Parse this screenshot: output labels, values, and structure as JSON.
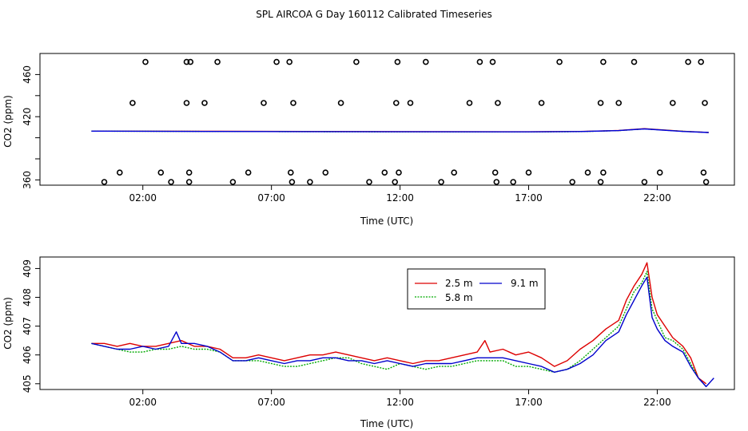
{
  "figure": {
    "title": "SPL AIRCOA G  Day 160112  Calibrated Timeseries"
  },
  "chart_data": [
    {
      "type": "scatter",
      "xlabel": "Time (UTC)",
      "ylabel": "CO2 (ppm)",
      "xlim": [
        -2.0,
        25.0
      ],
      "ylim": [
        355.0,
        480.0
      ],
      "xticks": [
        2,
        7,
        12,
        17,
        22
      ],
      "xtick_labels": [
        "02:00",
        "07:00",
        "12:00",
        "17:00",
        "22:00"
      ],
      "yticks": [
        360,
        380,
        400,
        420,
        440,
        460
      ],
      "ytick_labels": [
        "360",
        "",
        "",
        "420",
        "",
        "460"
      ],
      "grid": false,
      "legend": "none",
      "points": {
        "color": "#000000",
        "x": [
          0.5,
          1.1,
          1.6,
          2.1,
          2.7,
          3.1,
          3.7,
          3.7,
          3.8,
          3.8,
          3.85,
          4.4,
          4.9,
          5.5,
          6.1,
          6.7,
          7.2,
          7.7,
          7.75,
          7.8,
          7.85,
          8.5,
          9.1,
          9.7,
          10.3,
          10.8,
          11.4,
          11.8,
          11.85,
          11.9,
          11.95,
          12.4,
          13.0,
          13.6,
          14.1,
          14.7,
          15.1,
          15.6,
          15.7,
          15.75,
          15.8,
          16.4,
          17.0,
          17.5,
          18.2,
          18.7,
          19.3,
          19.8,
          19.8,
          19.9,
          19.9,
          20.5,
          21.1,
          21.5,
          22.1,
          22.6,
          23.2,
          23.7,
          23.8,
          23.85,
          23.9
        ]
      },
      "line_series": [
        {
          "color": "#dd0000",
          "x": [
            0.0,
            5.0,
            12.0,
            17.0,
            19.0,
            20.5,
            21.5,
            23.0,
            24.0
          ],
          "values": [
            406.3,
            406.1,
            405.8,
            405.7,
            406.0,
            406.9,
            408.6,
            406.2,
            405.0
          ]
        },
        {
          "color": "#00bb00",
          "x": [
            0.0,
            5.0,
            12.0,
            17.0,
            19.0,
            20.5,
            21.5,
            23.0,
            24.0
          ],
          "values": [
            406.3,
            406.0,
            405.6,
            405.5,
            405.8,
            406.8,
            408.4,
            406.1,
            405.0
          ]
        },
        {
          "color": "#0000dd",
          "x": [
            0.0,
            5.0,
            12.0,
            17.0,
            19.0,
            20.5,
            21.5,
            23.0,
            24.0
          ],
          "values": [
            406.3,
            406.0,
            405.7,
            405.6,
            405.9,
            406.8,
            408.4,
            406.0,
            405.0
          ]
        }
      ]
    },
    {
      "type": "line",
      "xlabel": "Time (UTC)",
      "ylabel": "CO2 (ppm)",
      "xlim": [
        -2.0,
        25.0
      ],
      "ylim": [
        404.8,
        409.4
      ],
      "xticks": [
        2,
        7,
        12,
        17,
        22
      ],
      "xtick_labels": [
        "02:00",
        "07:00",
        "12:00",
        "17:00",
        "22:00"
      ],
      "yticks": [
        405,
        406,
        407,
        408,
        409
      ],
      "ytick_labels": [
        "405",
        "406",
        "407",
        "408",
        "409"
      ],
      "grid": false,
      "legend": "top-right",
      "series": [
        {
          "name": "2.5 m",
          "color": "#dd0000",
          "x": [
            0.0,
            0.5,
            1.0,
            1.5,
            2.0,
            2.5,
            3.0,
            3.5,
            4.0,
            4.5,
            5.0,
            5.5,
            6.0,
            6.5,
            7.0,
            7.5,
            8.0,
            8.5,
            9.0,
            9.5,
            10.0,
            10.5,
            11.0,
            11.5,
            12.0,
            12.5,
            13.0,
            13.5,
            14.0,
            14.5,
            15.0,
            15.3,
            15.5,
            16.0,
            16.5,
            17.0,
            17.5,
            18.0,
            18.5,
            19.0,
            19.5,
            20.0,
            20.5,
            20.8,
            21.1,
            21.4,
            21.6,
            21.8,
            22.0,
            22.3,
            22.6,
            23.0,
            23.3,
            23.6,
            23.9
          ],
          "values": [
            406.4,
            406.4,
            406.3,
            406.4,
            406.3,
            406.3,
            406.4,
            406.5,
            406.3,
            406.3,
            406.2,
            405.9,
            405.9,
            406.0,
            405.9,
            405.8,
            405.9,
            406.0,
            406.0,
            406.1,
            406.0,
            405.9,
            405.8,
            405.9,
            405.8,
            405.7,
            405.8,
            405.8,
            405.9,
            406.0,
            406.1,
            406.5,
            406.1,
            406.2,
            406.0,
            406.1,
            405.9,
            405.6,
            405.8,
            406.2,
            406.5,
            406.9,
            407.2,
            407.9,
            408.4,
            408.8,
            409.2,
            408.0,
            407.4,
            407.0,
            406.6,
            406.3,
            405.9,
            405.2,
            405.0
          ]
        },
        {
          "name": "5.8 m",
          "color": "#00aa00",
          "x": [
            0.0,
            0.5,
            1.0,
            1.5,
            2.0,
            2.5,
            3.0,
            3.5,
            4.0,
            4.5,
            5.0,
            5.5,
            6.0,
            6.5,
            7.0,
            7.5,
            8.0,
            8.5,
            9.0,
            9.5,
            10.0,
            10.5,
            11.0,
            11.5,
            12.0,
            12.5,
            13.0,
            13.5,
            14.0,
            14.5,
            15.0,
            15.5,
            16.0,
            16.5,
            17.0,
            17.5,
            18.0,
            18.5,
            19.0,
            19.5,
            20.0,
            20.5,
            20.8,
            21.1,
            21.4,
            21.6,
            21.8,
            22.0,
            22.3,
            22.6,
            23.0,
            23.3,
            23.6,
            23.9
          ],
          "values": [
            406.4,
            406.3,
            406.2,
            406.1,
            406.1,
            406.2,
            406.2,
            406.3,
            406.2,
            406.2,
            406.1,
            405.8,
            405.8,
            405.8,
            405.7,
            405.6,
            405.6,
            405.7,
            405.8,
            405.9,
            405.9,
            405.7,
            405.6,
            405.5,
            405.7,
            405.6,
            405.5,
            405.6,
            405.6,
            405.7,
            405.8,
            405.8,
            405.8,
            405.6,
            405.6,
            405.5,
            405.4,
            405.5,
            405.8,
            406.2,
            406.6,
            407.0,
            407.6,
            408.2,
            408.5,
            408.9,
            407.6,
            407.2,
            406.6,
            406.5,
            406.2,
            405.7,
            405.2,
            404.9
          ]
        },
        {
          "name": "9.1 m",
          "color": "#0000cc",
          "x": [
            0.0,
            0.5,
            1.0,
            1.5,
            2.0,
            2.5,
            3.0,
            3.3,
            3.5,
            4.0,
            4.5,
            5.0,
            5.5,
            6.0,
            6.5,
            7.0,
            7.5,
            8.0,
            8.5,
            9.0,
            9.5,
            10.0,
            10.5,
            11.0,
            11.5,
            12.0,
            12.5,
            13.0,
            13.5,
            14.0,
            14.5,
            15.0,
            15.5,
            16.0,
            16.5,
            17.0,
            17.5,
            18.0,
            18.5,
            19.0,
            19.5,
            20.0,
            20.5,
            20.8,
            21.1,
            21.4,
            21.6,
            21.8,
            22.0,
            22.3,
            22.6,
            23.0,
            23.3,
            23.6,
            23.9,
            24.2
          ],
          "values": [
            406.4,
            406.3,
            406.2,
            406.2,
            406.3,
            406.2,
            406.3,
            406.8,
            406.4,
            406.4,
            406.3,
            406.1,
            405.8,
            405.8,
            405.9,
            405.8,
            405.7,
            405.8,
            405.8,
            405.9,
            405.9,
            405.8,
            405.8,
            405.7,
            405.8,
            405.7,
            405.6,
            405.7,
            405.7,
            405.7,
            405.8,
            405.9,
            405.9,
            405.9,
            405.8,
            405.7,
            405.6,
            405.4,
            405.5,
            405.7,
            406.0,
            406.5,
            406.8,
            407.4,
            407.9,
            408.4,
            408.7,
            407.3,
            406.9,
            406.5,
            406.3,
            406.1,
            405.6,
            405.2,
            404.9,
            405.2
          ]
        }
      ]
    }
  ]
}
